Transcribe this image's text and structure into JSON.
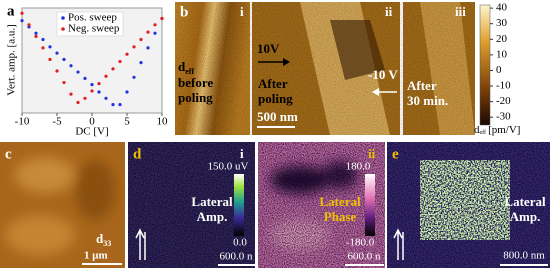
{
  "chart_data": {
    "type": "scatter",
    "panel_label": "a",
    "x_label": "DC [V]",
    "y_label": "Vert. amp. [a.u.]",
    "x": [
      -10,
      -9,
      -8,
      -7,
      -6,
      -5,
      -4,
      -3,
      -2,
      -1,
      0,
      1,
      2,
      3,
      4,
      5,
      6,
      7,
      8,
      9,
      10
    ],
    "series": [
      {
        "name": "Pos. sweep",
        "color": "#2233dd",
        "values": [
          0.88,
          0.82,
          0.76,
          0.7,
          0.63,
          0.57,
          0.51,
          0.45,
          0.39,
          0.33,
          0.27,
          0.2,
          0.14,
          0.08,
          0.08,
          0.2,
          0.34,
          0.48,
          0.62,
          0.76,
          0.9
        ]
      },
      {
        "name": "Neg. sweep",
        "color": "#e02020",
        "values": [
          0.95,
          0.84,
          0.73,
          0.62,
          0.51,
          0.4,
          0.29,
          0.18,
          0.1,
          0.14,
          0.21,
          0.28,
          0.35,
          0.42,
          0.49,
          0.56,
          0.63,
          0.7,
          0.77,
          0.84,
          0.9
        ]
      }
    ],
    "xlim": [
      -10,
      10
    ],
    "xticks": [
      -10,
      -5,
      0,
      5,
      10
    ],
    "ylim": [
      0,
      1
    ],
    "legend": "upper center"
  },
  "panel_b": {
    "label": "b",
    "subpanels": [
      "i",
      "ii",
      "iii"
    ],
    "deff_symbol": "d",
    "deff_subscript": "eff",
    "text_i": [
      "before",
      "poling"
    ],
    "text_ii": [
      "10V",
      "After",
      "poling",
      "-10 V"
    ],
    "text_iii": [
      "After",
      "30 min."
    ],
    "scale_bar": "500 nm",
    "colorbar": {
      "ticks": [
        40,
        30,
        20,
        10,
        0,
        -10,
        -20,
        -30
      ],
      "lim": [
        -35,
        42
      ],
      "unit": "[pm/V]"
    }
  },
  "panel_c": {
    "label": "c",
    "symbol": "d",
    "subscript": "33",
    "scale_bar": "1 μm"
  },
  "panel_d": {
    "label": "d",
    "sub": "i",
    "max": "150.0 uV",
    "min": "0.0",
    "text": [
      "Lateral",
      "Amp."
    ],
    "scale_bar": "600.0 n",
    "sub2": "ii",
    "max2": "180.0",
    "min2": "-180.0",
    "text2": [
      "Lateral",
      "Phase"
    ],
    "scale_bar2": "600.0 n"
  },
  "panel_e": {
    "label": "e",
    "text": [
      "Lateral",
      "Amp."
    ],
    "scale_bar": "800.0 nm"
  }
}
